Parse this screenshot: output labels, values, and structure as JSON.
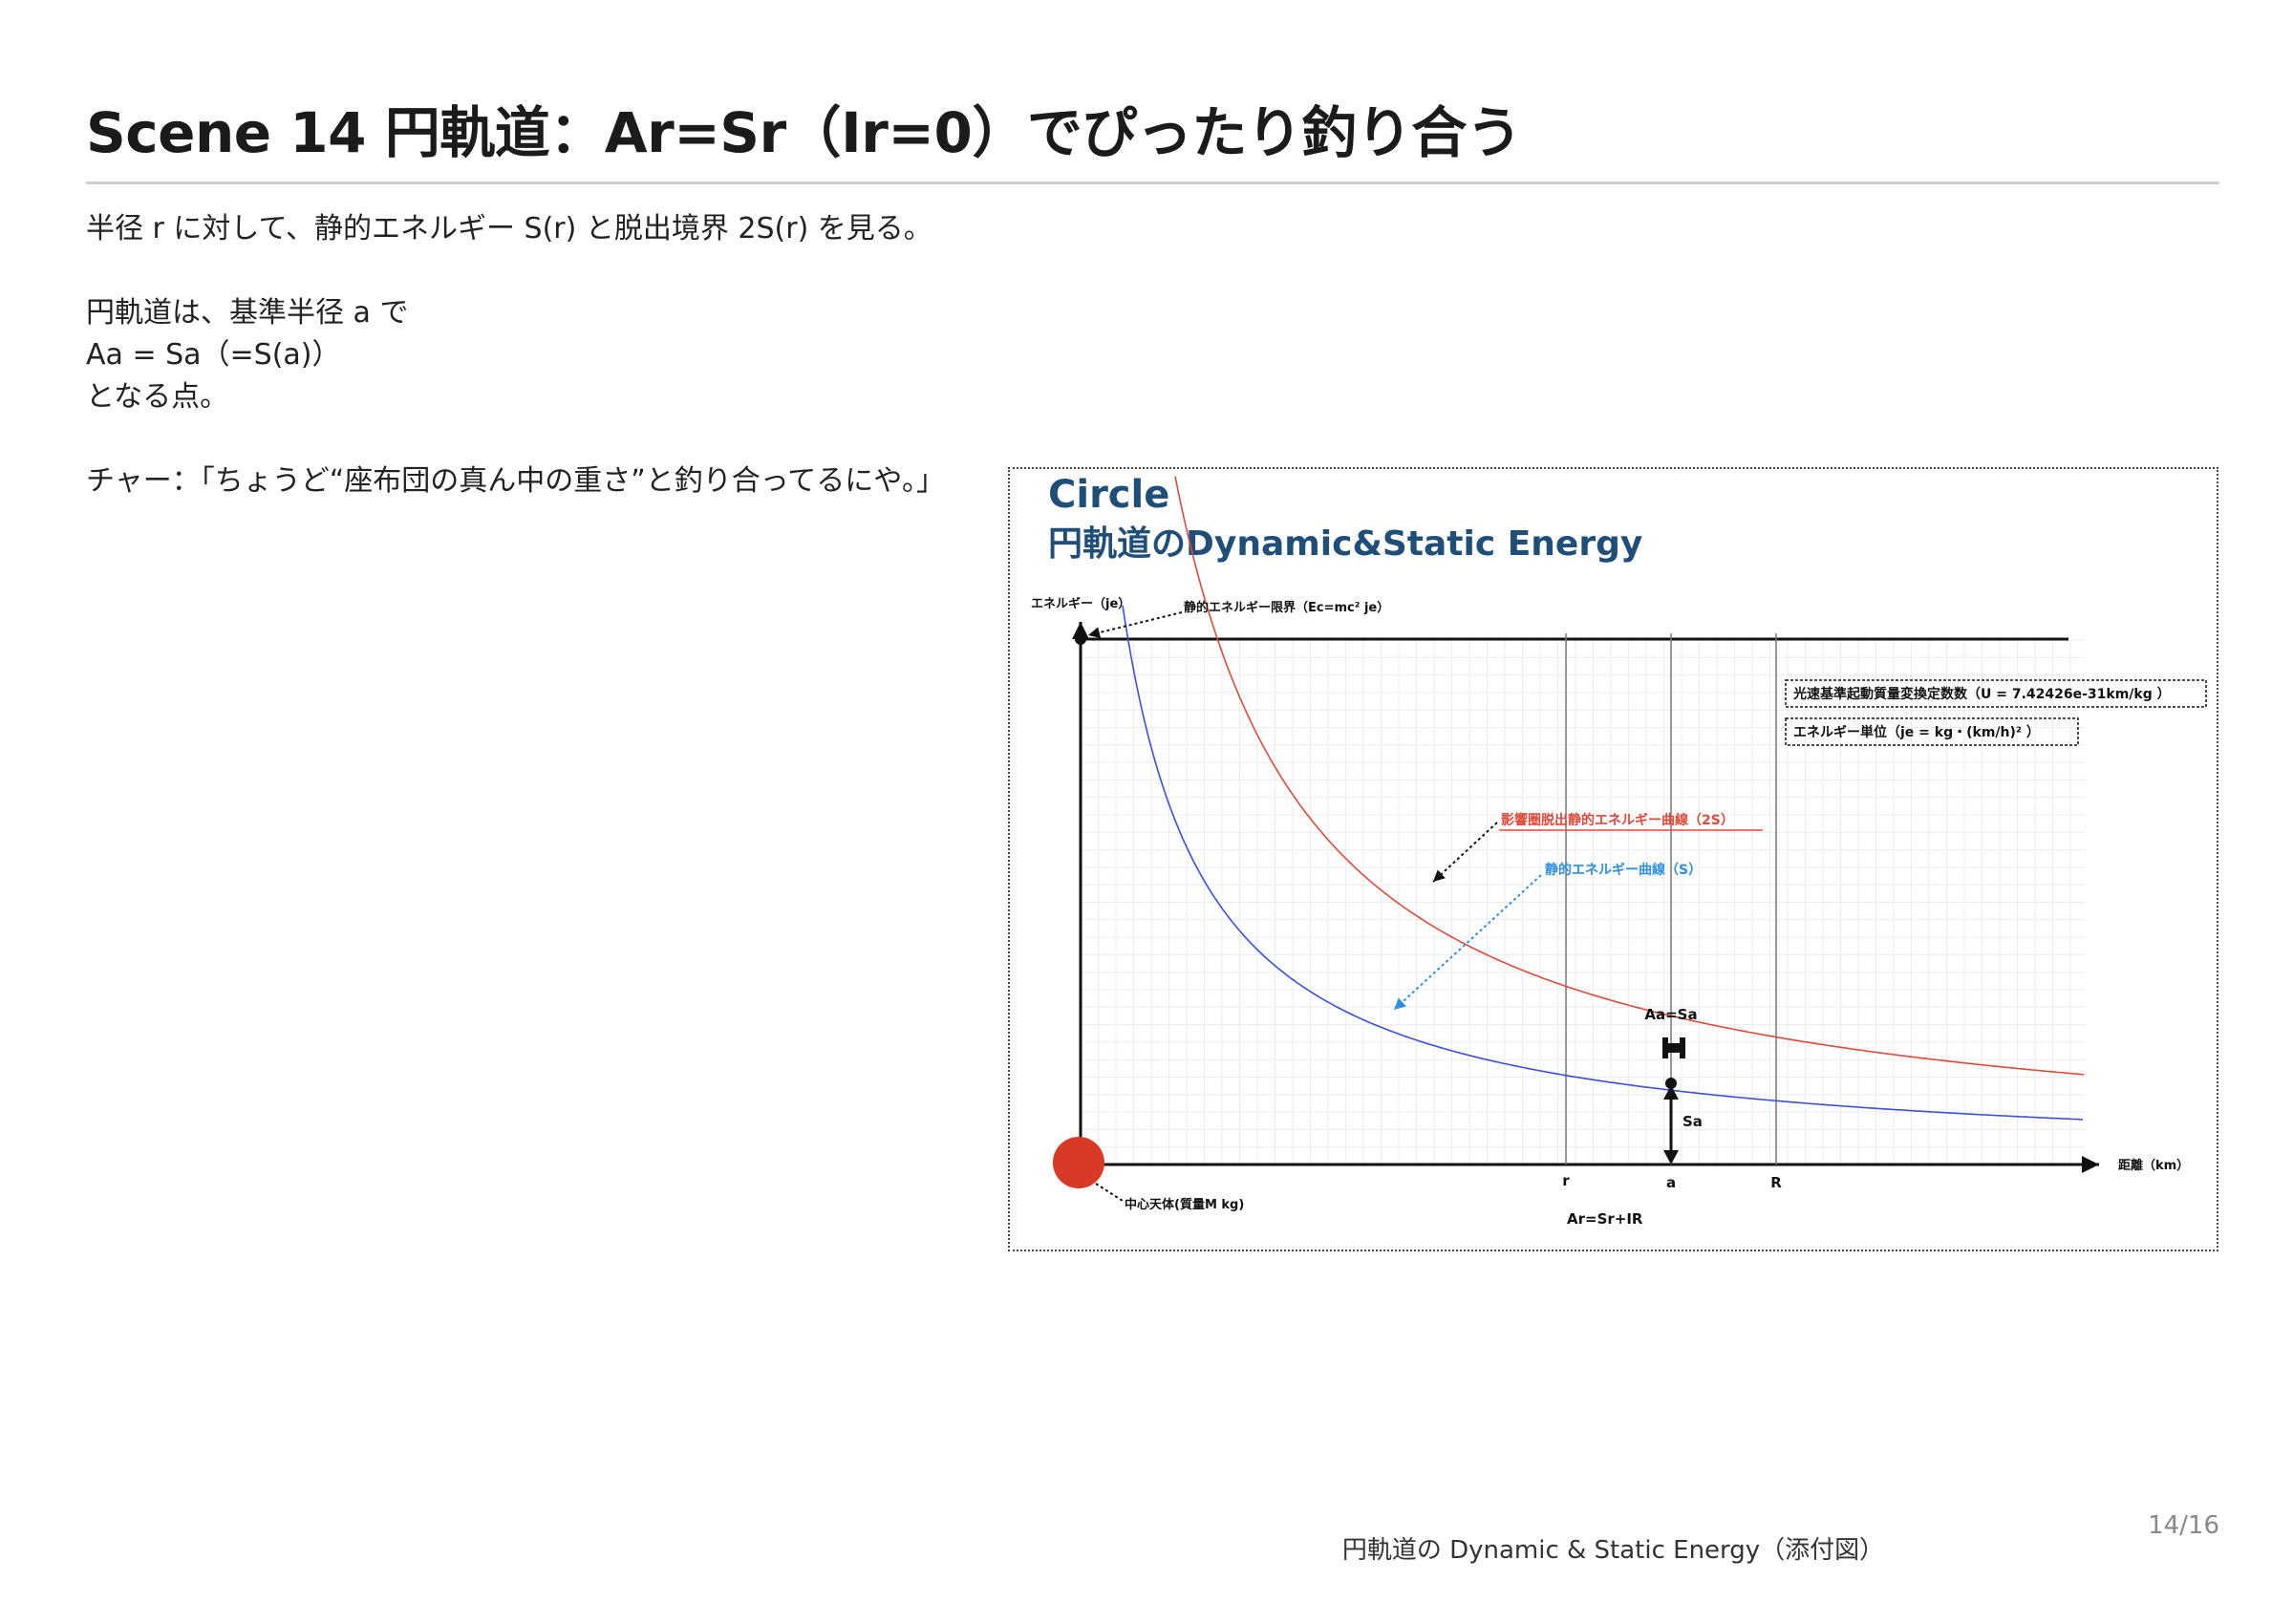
{
  "title": "Scene 14  円軌道：Ar=Sr（Ir=0）でぴったり釣り合う",
  "body": {
    "line1": "半径 r に対して、静的エネルギー S(r) と脱出境界 2S(r) を見る。",
    "line2": "円軌道は、基準半径 a で",
    "line3": "Aa = Sa（=S(a)）",
    "line4": "となる点。",
    "line5": "チャー：「ちょうど“座布団の真ん中の重さ”と釣り合ってるにや。」"
  },
  "figure": {
    "title_line1": "Circle",
    "title_line2": "円軌道のDynamic&Static Energy",
    "y_axis_label": "エネルギー（je）",
    "x_axis_label": "距離（km）",
    "limit_label": "静的エネルギー限界（Ec=mc² je）",
    "conv_box": "光速基準起動質量変換定数数（U = 7.42426e-31km/kg ）",
    "unit_box": "エネルギー単位（je = kg・(km/h)² ）",
    "curve_2s_label": "影響圏脱出静的エネルギー曲線（2S）",
    "curve_s_label": "静的エネルギー曲線（S）",
    "aa_sa_label": "Aa=Sa",
    "sa_label": "Sa",
    "central_body_label": "中心天体(質量M kg)",
    "ar_formula": "Ar=Sr+IR",
    "marker_r": "r",
    "marker_a": "a",
    "marker_R": "R",
    "colors": {
      "title": "#1f4e79",
      "curve_2s": "#e04a3a",
      "curve_s": "#3a4fe0",
      "label_s": "#2f8fe0",
      "central_body": "#d93a26"
    }
  },
  "caption": "円軌道の Dynamic & Static Energy（添付図）",
  "page_number": "14/16"
}
